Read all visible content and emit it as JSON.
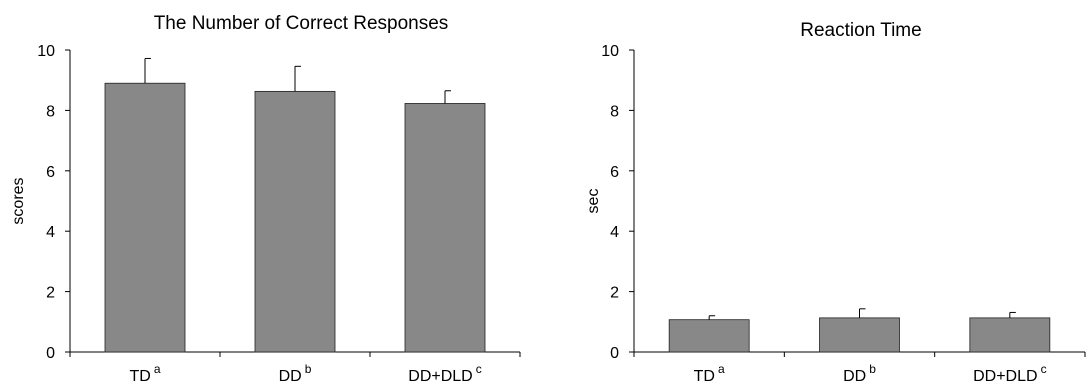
{
  "chart_data": [
    {
      "type": "bar",
      "title": "The Number of Correct Responses",
      "ylabel": "scores",
      "xlabel": "",
      "ylim": [
        0,
        10
      ],
      "yticks": [
        "0",
        "2",
        "4",
        "6",
        "8",
        "10"
      ],
      "categories": [
        "TD",
        "DD",
        "DD+DLD"
      ],
      "category_superscripts": [
        "a",
        "b",
        "c"
      ],
      "values": [
        8.9,
        8.63,
        8.23
      ],
      "errors": [
        0.82,
        0.83,
        0.42
      ],
      "bar_color": "#888888",
      "grid": false,
      "legend": "none"
    },
    {
      "type": "bar",
      "title": "Reaction Time",
      "ylabel": "sec",
      "xlabel": "",
      "ylim": [
        0,
        10
      ],
      "yticks": [
        "0",
        "2",
        "4",
        "6",
        "8",
        "10"
      ],
      "categories": [
        "TD",
        "DD",
        "DD+DLD"
      ],
      "category_superscripts": [
        "a",
        "b",
        "c"
      ],
      "values": [
        1.07,
        1.13,
        1.13
      ],
      "errors": [
        0.13,
        0.3,
        0.18
      ],
      "bar_color": "#888888",
      "grid": false,
      "legend": "none"
    }
  ]
}
